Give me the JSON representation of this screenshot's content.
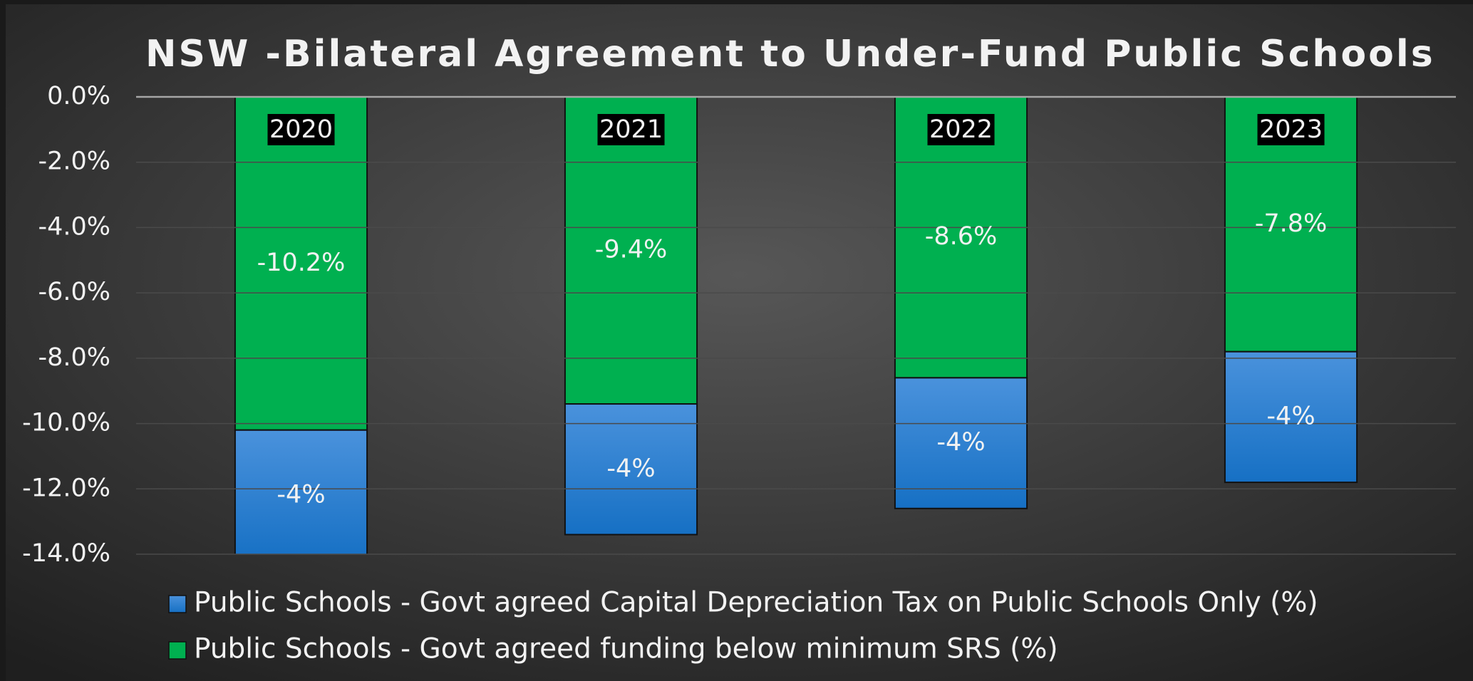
{
  "chart_data": {
    "type": "stacked_bar",
    "title": "NSW -Bilateral Agreement to Under-Fund Public Schools",
    "categories": [
      "2020",
      "2021",
      "2022",
      "2023"
    ],
    "series": [
      {
        "name": "Public Schools - Govt agreed funding below minimum SRS (%)",
        "color": "#00b050",
        "values": [
          -10.2,
          -9.4,
          -8.6,
          -7.8
        ],
        "value_labels": [
          "-10.2%",
          "-9.4%",
          "-8.6%",
          "-7.8%"
        ]
      },
      {
        "name": "Public Schools - Govt agreed Capital Depreciation Tax on Public Schools Only  (%)",
        "color": "#2f82d0",
        "values": [
          -4,
          -4,
          -4,
          -4
        ],
        "value_labels": [
          "-4%",
          "-4%",
          "-4%",
          "-4%"
        ]
      }
    ],
    "ylim": [
      -14,
      0
    ],
    "yticks": [
      {
        "value": 0,
        "label": "0.0%"
      },
      {
        "value": -2,
        "label": "-2.0%"
      },
      {
        "value": -4,
        "label": "-4.0%"
      },
      {
        "value": -6,
        "label": "-6.0%"
      },
      {
        "value": -8,
        "label": "-8.0%"
      },
      {
        "value": -10,
        "label": "-10.0%"
      },
      {
        "value": -12,
        "label": "-12.0%"
      },
      {
        "value": -14,
        "label": "-14.0%"
      }
    ],
    "grid": true
  }
}
